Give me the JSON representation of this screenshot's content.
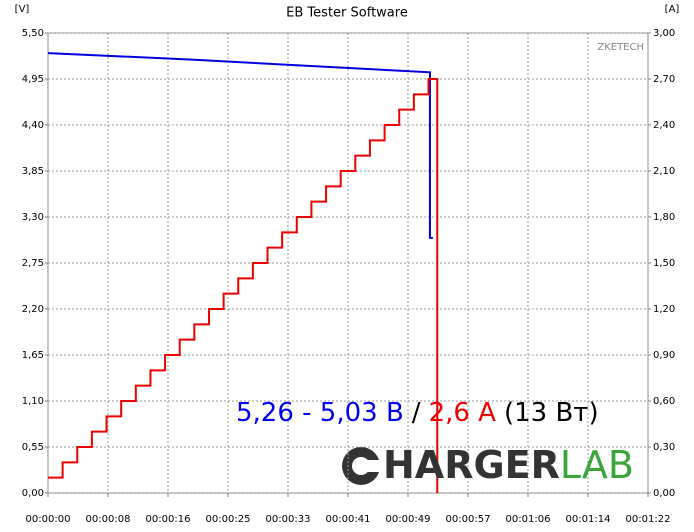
{
  "chart_data": {
    "type": "line",
    "title": "EB Tester Software",
    "y_unit": "[V]",
    "y2_unit": "[A]",
    "watermark": "ZKETECH",
    "annotation": [
      {
        "text": "5,26 - 5,03 В",
        "color": "#0000ee"
      },
      {
        "text": "/",
        "color": "#000000"
      },
      {
        "text": "2,6 А",
        "color": "#ee0000"
      },
      {
        "text": "(13 Вт)",
        "color": "#000000"
      }
    ],
    "logo": [
      {
        "text": "HARGER",
        "color": "#333333"
      },
      {
        "text": "LAB",
        "color": "#3aa53a"
      }
    ],
    "grid": true,
    "xlim": [
      0,
      82
    ],
    "xticks": [
      {
        "value": 0,
        "label": "00:00:00"
      },
      {
        "value": 8.2,
        "label": "00:00:08"
      },
      {
        "value": 16.4,
        "label": "00:00:16"
      },
      {
        "value": 24.6,
        "label": "00:00:25"
      },
      {
        "value": 32.8,
        "label": "00:00:33"
      },
      {
        "value": 41,
        "label": "00:00:41"
      },
      {
        "value": 49.2,
        "label": "00:00:49"
      },
      {
        "value": 57.4,
        "label": "00:00:57"
      },
      {
        "value": 65.6,
        "label": "00:01:06"
      },
      {
        "value": 73.8,
        "label": "00:01:14"
      },
      {
        "value": 82,
        "label": "00:01:22"
      }
    ],
    "ylim": [
      0,
      5.5
    ],
    "yticks": [
      {
        "value": 0,
        "label": "0,00"
      },
      {
        "value": 0.55,
        "label": "0,55"
      },
      {
        "value": 1.1,
        "label": "1,10"
      },
      {
        "value": 1.65,
        "label": "1,65"
      },
      {
        "value": 2.2,
        "label": "2,20"
      },
      {
        "value": 2.75,
        "label": "2,75"
      },
      {
        "value": 3.3,
        "label": "3,30"
      },
      {
        "value": 3.85,
        "label": "3,85"
      },
      {
        "value": 4.4,
        "label": "4,40"
      },
      {
        "value": 4.95,
        "label": "4,95"
      },
      {
        "value": 5.5,
        "label": "5,50"
      }
    ],
    "y2lim": [
      0,
      3
    ],
    "y2ticks": [
      {
        "value": 0,
        "label": "0,00"
      },
      {
        "value": 0.3,
        "label": "0,30"
      },
      {
        "value": 0.6,
        "label": "0,60"
      },
      {
        "value": 0.9,
        "label": "0,90"
      },
      {
        "value": 1.2,
        "label": "1,20"
      },
      {
        "value": 1.5,
        "label": "1,50"
      },
      {
        "value": 1.8,
        "label": "1,80"
      },
      {
        "value": 2.1,
        "label": "2,10"
      },
      {
        "value": 2.4,
        "label": "2,40"
      },
      {
        "value": 2.7,
        "label": "2,70"
      },
      {
        "value": 3,
        "label": "3,00"
      }
    ],
    "series": [
      {
        "color": "#0000dd",
        "x": [
          0,
          20,
          52.2,
          52.2,
          52.6
        ],
        "values": [
          5.26,
          5.18,
          5.03,
          3.05,
          3.05
        ]
      },
      {
        "color": "#ee0000",
        "axis": "y2",
        "x": [
          0,
          2,
          2,
          4,
          4,
          6,
          6,
          8,
          8,
          10,
          10,
          12,
          12,
          14,
          14,
          16,
          16,
          18,
          18,
          20,
          20,
          22,
          22,
          24,
          24,
          26,
          26,
          28,
          28,
          30,
          30,
          32,
          32,
          34,
          34,
          36,
          36,
          38,
          38,
          40,
          40,
          42,
          42,
          44,
          44,
          46,
          46,
          48,
          48,
          50,
          50,
          52,
          52,
          53.2,
          53.2
        ],
        "values": [
          0.1,
          0.1,
          0.2,
          0.2,
          0.3,
          0.3,
          0.4,
          0.4,
          0.5,
          0.5,
          0.6,
          0.6,
          0.7,
          0.7,
          0.8,
          0.8,
          0.9,
          0.9,
          1.0,
          1.0,
          1.1,
          1.1,
          1.2,
          1.2,
          1.3,
          1.3,
          1.4,
          1.4,
          1.5,
          1.5,
          1.6,
          1.6,
          1.7,
          1.7,
          1.8,
          1.8,
          1.9,
          1.9,
          2.0,
          2.0,
          2.1,
          2.1,
          2.2,
          2.2,
          2.3,
          2.3,
          2.4,
          2.4,
          2.5,
          2.5,
          2.6,
          2.6,
          2.7,
          2.7,
          0
        ]
      }
    ]
  }
}
